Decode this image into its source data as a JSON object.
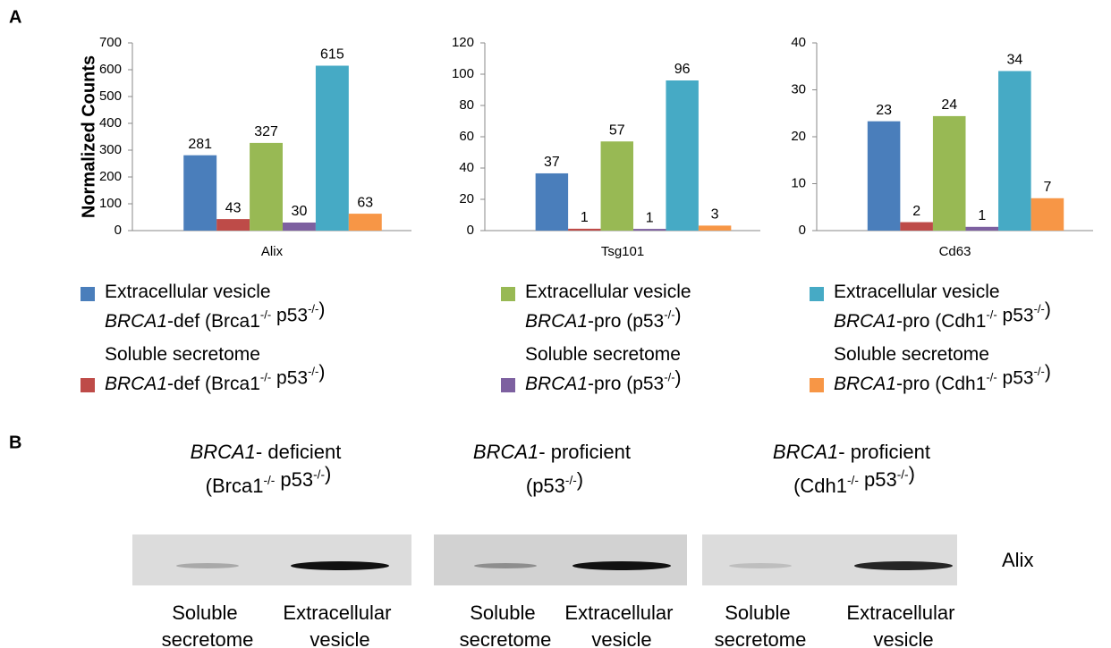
{
  "panels": {
    "a": "A",
    "b": "B"
  },
  "chart_data": [
    {
      "type": "bar",
      "y_label": "Normalized Counts",
      "categories": [
        "Alix"
      ],
      "ylim": [
        0,
        700
      ],
      "yticks": [
        0,
        100,
        200,
        300,
        400,
        500,
        600,
        700
      ],
      "series": [
        {
          "name": "Extracellular vesicle BRCA1-def (Brca1-/- p53-/-)",
          "color": "#4a7ebb",
          "values": [
            281
          ]
        },
        {
          "name": "Soluble secretome BRCA1-def (Brca1-/- p53-/-)",
          "color": "#be4b48",
          "values": [
            43
          ]
        },
        {
          "name": "Extracellular vesicle BRCA1-pro (p53-/-)",
          "color": "#98b954",
          "values": [
            327
          ]
        },
        {
          "name": "Soluble secretome BRCA1-pro (p53-/-)",
          "color": "#7d60a0",
          "values": [
            30
          ]
        },
        {
          "name": "Extracellular vesicle BRCA1-pro (Cdh1-/- p53-/-)",
          "color": "#46aac5",
          "values": [
            615
          ]
        },
        {
          "name": "Soluble secretome BRCA1-pro (Cdh1-/- p53-/-)",
          "color": "#f79646",
          "values": [
            63
          ]
        }
      ]
    },
    {
      "type": "bar",
      "categories": [
        "Tsg101"
      ],
      "ylim": [
        0,
        120
      ],
      "yticks": [
        0,
        20,
        40,
        60,
        80,
        100,
        120
      ],
      "series": [
        {
          "values": [
            36.6
          ],
          "value_labels": [
            "37"
          ]
        },
        {
          "values": [
            1.2
          ],
          "value_labels": [
            "1"
          ]
        },
        {
          "values": [
            57
          ]
        },
        {
          "values": [
            1.1
          ],
          "value_labels": [
            "1"
          ]
        },
        {
          "values": [
            96
          ]
        },
        {
          "values": [
            3.2
          ],
          "value_labels": [
            "3"
          ]
        }
      ]
    },
    {
      "type": "bar",
      "categories": [
        "Cd63"
      ],
      "ylim": [
        0,
        40
      ],
      "yticks": [
        0,
        10,
        20,
        30,
        40
      ],
      "series": [
        {
          "values": [
            23.3
          ],
          "value_labels": [
            "23"
          ]
        },
        {
          "values": [
            1.8
          ],
          "value_labels": [
            "2"
          ]
        },
        {
          "values": [
            24.4
          ],
          "value_labels": [
            "24"
          ]
        },
        {
          "values": [
            0.8
          ],
          "value_labels": [
            "1"
          ]
        },
        {
          "values": [
            34
          ]
        },
        {
          "values": [
            6.9
          ],
          "value_labels": [
            "7"
          ]
        }
      ]
    }
  ],
  "blot": {
    "protein": "Alix",
    "groups": [
      {
        "title": "BRCA1- deficient (Brca1-/- p53-/-)",
        "lanes": [
          "Soluble secretome",
          "Extracellular vesicle"
        ]
      },
      {
        "title": "BRCA1- proficient (p53-/-)",
        "lanes": [
          "Soluble secretome",
          "Extracellular vesicle"
        ]
      },
      {
        "title": "BRCA1- proficient (Cdh1-/- p53-/-)",
        "lanes": [
          "Soluble secretome",
          "Extracellular vesicle"
        ]
      }
    ]
  }
}
